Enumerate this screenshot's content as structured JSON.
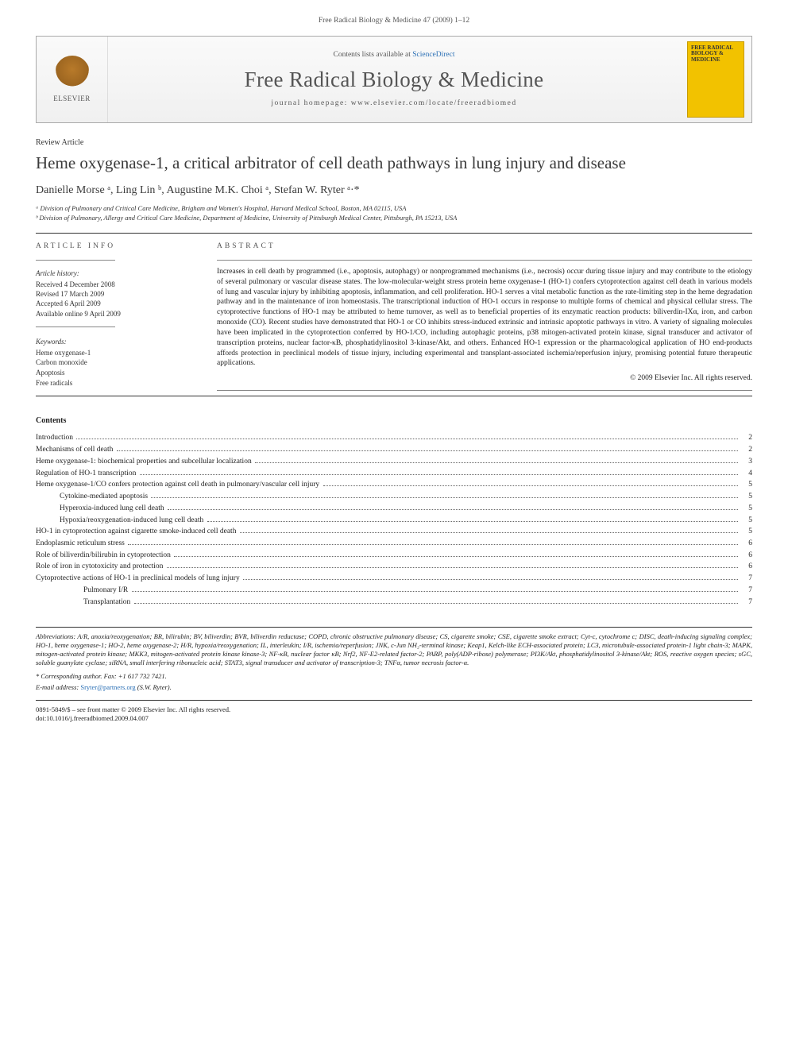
{
  "header_line": "Free Radical Biology & Medicine 47 (2009) 1–12",
  "banner": {
    "publisher": "ELSEVIER",
    "lists_prefix": "Contents lists available at ",
    "lists_link": "ScienceDirect",
    "journal_title": "Free Radical Biology & Medicine",
    "homepage_label": "journal homepage: www.elsevier.com/locate/freeradbiomed",
    "cover_title": "FREE RADICAL BIOLOGY & MEDICINE"
  },
  "article": {
    "type": "Review Article",
    "title": "Heme oxygenase-1, a critical arbitrator of cell death pathways in lung injury and disease",
    "authors_html": "Danielle Morse ᵃ, Ling Lin ᵇ, Augustine M.K. Choi ᵃ, Stefan W. Ryter ᵃ·*",
    "affiliations": [
      "ᵃ Division of Pulmonary and Critical Care Medicine, Brigham and Women's Hospital, Harvard Medical School, Boston, MA 02115, USA",
      "ᵇ Division of Pulmonary, Allergy and Critical Care Medicine, Department of Medicine, University of Pittsburgh Medical Center, Pittsburgh, PA 15213, USA"
    ]
  },
  "info": {
    "head": "ARTICLE INFO",
    "history_label": "Article history:",
    "history": [
      "Received 4 December 2008",
      "Revised 17 March 2009",
      "Accepted 6 April 2009",
      "Available online 9 April 2009"
    ],
    "keywords_label": "Keywords:",
    "keywords": [
      "Heme oxygenase-1",
      "Carbon monoxide",
      "Apoptosis",
      "Free radicals"
    ]
  },
  "abstract": {
    "head": "ABSTRACT",
    "text": "Increases in cell death by programmed (i.e., apoptosis, autophagy) or nonprogrammed mechanisms (i.e., necrosis) occur during tissue injury and may contribute to the etiology of several pulmonary or vascular disease states. The low-molecular-weight stress protein heme oxygenase-1 (HO-1) confers cytoprotection against cell death in various models of lung and vascular injury by inhibiting apoptosis, inflammation, and cell proliferation. HO-1 serves a vital metabolic function as the rate-limiting step in the heme degradation pathway and in the maintenance of iron homeostasis. The transcriptional induction of HO-1 occurs in response to multiple forms of chemical and physical cellular stress. The cytoprotective functions of HO-1 may be attributed to heme turnover, as well as to beneficial properties of its enzymatic reaction products: biliverdin-IXα, iron, and carbon monoxide (CO). Recent studies have demonstrated that HO-1 or CO inhibits stress-induced extrinsic and intrinsic apoptotic pathways in vitro. A variety of signaling molecules have been implicated in the cytoprotection conferred by HO-1/CO, including autophagic proteins, p38 mitogen-activated protein kinase, signal transducer and activator of transcription proteins, nuclear factor-κB, phosphatidylinositol 3-kinase/Akt, and others. Enhanced HO-1 expression or the pharmacological application of HO end-products affords protection in preclinical models of tissue injury, including experimental and transplant-associated ischemia/reperfusion injury, promising potential future therapeutic applications.",
    "copyright": "© 2009 Elsevier Inc. All rights reserved."
  },
  "contents": {
    "head": "Contents",
    "items": [
      {
        "label": "Introduction",
        "indent": 0,
        "page": "2"
      },
      {
        "label": "Mechanisms of cell death",
        "indent": 0,
        "page": "2"
      },
      {
        "label": "Heme oxygenase-1: biochemical properties and subcellular localization",
        "indent": 0,
        "page": "3"
      },
      {
        "label": "Regulation of HO-1 transcription",
        "indent": 0,
        "page": "4"
      },
      {
        "label": "Heme oxygenase-1/CO confers protection against cell death in pulmonary/vascular cell injury",
        "indent": 0,
        "page": "5"
      },
      {
        "label": "Cytokine-mediated apoptosis",
        "indent": 1,
        "page": "5"
      },
      {
        "label": "Hyperoxia-induced lung cell death",
        "indent": 1,
        "page": "5"
      },
      {
        "label": "Hypoxia/reoxygenation-induced lung cell death",
        "indent": 1,
        "page": "5"
      },
      {
        "label": "HO-1 in cytoprotection against cigarette smoke-induced cell death",
        "indent": 0,
        "page": "5"
      },
      {
        "label": "Endoplasmic reticulum stress",
        "indent": 0,
        "page": "6"
      },
      {
        "label": "Role of biliverdin/bilirubin in cytoprotection",
        "indent": 0,
        "page": "6"
      },
      {
        "label": "Role of iron in cytotoxicity and protection",
        "indent": 0,
        "page": "6"
      },
      {
        "label": "Cytoprotective actions of HO-1 in preclinical models of lung injury",
        "indent": 0,
        "page": "7"
      },
      {
        "label": "Pulmonary I/R",
        "indent": 2,
        "page": "7"
      },
      {
        "label": "Transplantation",
        "indent": 2,
        "page": "7"
      }
    ]
  },
  "footnotes": {
    "abbrev_label": "Abbreviations:",
    "abbrev_text": " A/R, anoxia/reoxygenation; BR, bilirubin; BV, biliverdin; BVR, biliverdin reductase; COPD, chronic obstructive pulmonary disease; CS, cigarette smoke; CSE, cigarette smoke extract; Cyt-c, cytochrome c; DISC, death-inducing signaling complex; HO-1, heme oxygenase-1; HO-2, heme oxygenase-2; H/R, hypoxia/reoxygenation; IL, interleukin; I/R, ischemia/reperfusion; JNK, c-Jun NH₂-terminal kinase; Keap1, Kelch-like ECH-associated protein; LC3, microtubule-associated protein-1 light chain-3; MAPK, mitogen-activated protein kinase; MKK3, mitogen-activated protein kinase kinase-3; NF-κB, nuclear factor κB; Nrf2, NF-E2-related factor-2; PARP, poly(ADP-ribose) polymerase; PI3K/Akt, phosphatidylinositol 3-kinase/Akt; ROS, reactive oxygen species; sGC, soluble guanylate cyclase; siRNA, small interfering ribonucleic acid; STAT3, signal transducer and activator of transcription-3; TNFα, tumor necrosis factor-α.",
    "corresponding": "* Corresponding author. Fax: +1 617 732 7421.",
    "email_label": "E-mail address:",
    "email_addr": "Sryter@partners.org",
    "email_tail": " (S.W. Ryter)."
  },
  "bottom": {
    "issn": "0891-5849/$ – see front matter © 2009 Elsevier Inc. All rights reserved.",
    "doi": "doi:10.1016/j.freeradbiomed.2009.04.007"
  },
  "colors": {
    "link": "#2a6fb5",
    "text": "#222222",
    "muted": "#555555",
    "cover_bg": "#f2c200"
  }
}
